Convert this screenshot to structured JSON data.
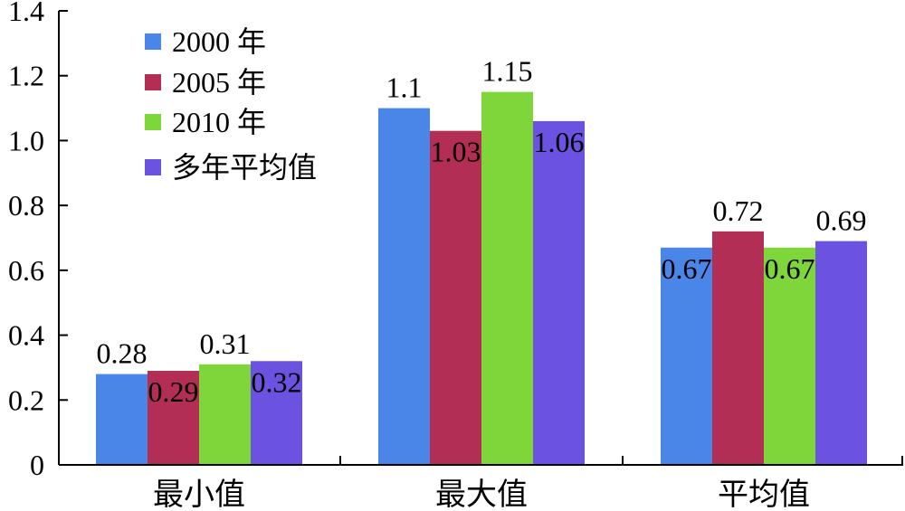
{
  "chart_data": {
    "type": "bar",
    "categories": [
      "最小值",
      "最大值",
      "平均值"
    ],
    "series": [
      {
        "name": "2000 年",
        "color": "#4a86e8",
        "values": [
          0.28,
          1.1,
          0.67
        ],
        "labels": [
          "0.28",
          "1.1",
          "0.67"
        ]
      },
      {
        "name": "2005 年",
        "color": "#b22e55",
        "values": [
          0.29,
          1.03,
          0.72
        ],
        "labels": [
          "0.29",
          "1.03",
          "0.72"
        ]
      },
      {
        "name": "2010 年",
        "color": "#7ed63a",
        "values": [
          0.31,
          1.15,
          0.67
        ],
        "labels": [
          "0.31",
          "1.15",
          "0.67"
        ]
      },
      {
        "name": "多年平均值",
        "color": "#6c52e0",
        "values": [
          0.32,
          1.06,
          0.69
        ],
        "labels": [
          "0.32",
          "1.06",
          "0.69"
        ]
      }
    ],
    "y_ticks": [
      "0",
      "0.2",
      "0.4",
      "0.6",
      "0.8",
      "1.0",
      "1.2",
      "1.4"
    ],
    "ylim": [
      0,
      1.4
    ],
    "legend_position": "top-left",
    "grid": false
  }
}
